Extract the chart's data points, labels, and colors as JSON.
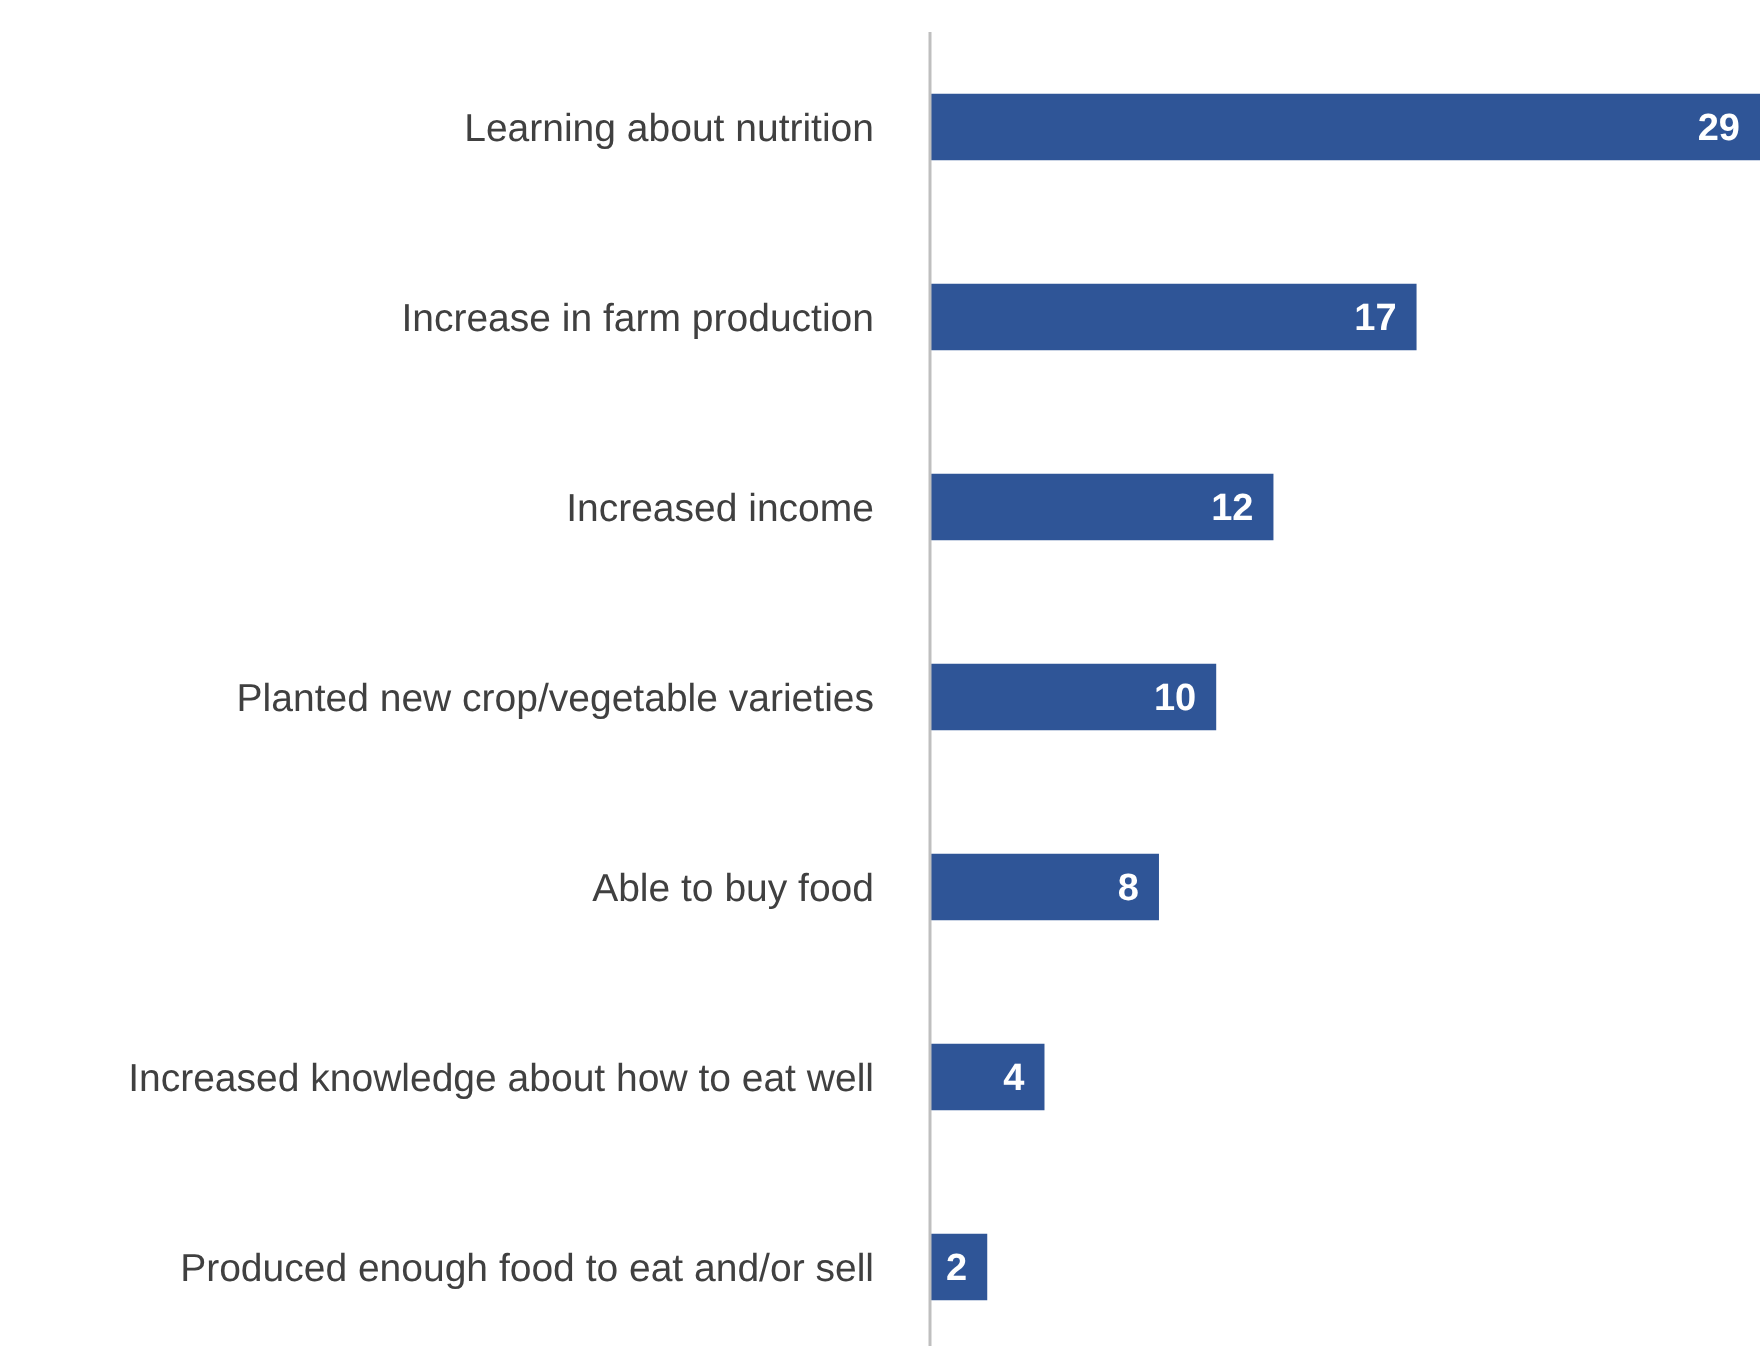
{
  "chart_data": {
    "type": "bar",
    "orientation": "horizontal",
    "categories": [
      "Learning about nutrition",
      "Increase in farm production",
      "Increased income",
      "Planted new crop/vegetable varieties",
      "Able to buy food",
      "Increased knowledge about how to eat well",
      "Produced enough food to eat and/or sell"
    ],
    "values": [
      29,
      17,
      12,
      10,
      8,
      4,
      2
    ],
    "color": "#2f5597",
    "data_labels": true
  }
}
